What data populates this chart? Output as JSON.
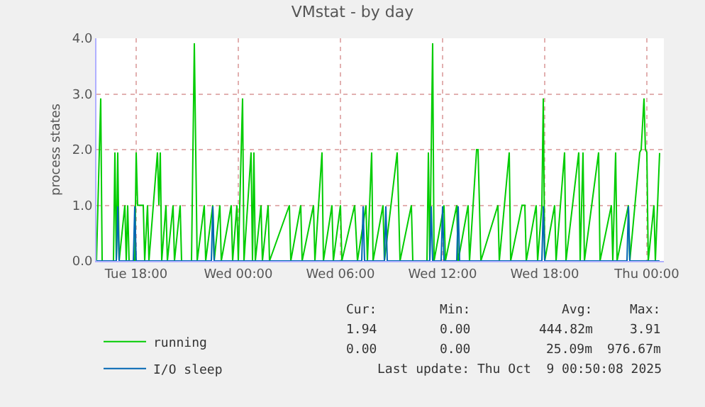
{
  "chart_data": {
    "type": "line",
    "title": "VMstat - by day",
    "ylabel": "process states",
    "xlim": [
      "2025-10-07T15:40",
      "2025-10-09T01:00"
    ],
    "xticks": [
      {
        "value": "2025-10-07T18:00",
        "label": "Tue 18:00"
      },
      {
        "value": "2025-10-08T00:00",
        "label": "Wed 00:00"
      },
      {
        "value": "2025-10-08T06:00",
        "label": "Wed 06:00"
      },
      {
        "value": "2025-10-08T12:00",
        "label": "Wed 12:00"
      },
      {
        "value": "2025-10-08T18:00",
        "label": "Wed 18:00"
      },
      {
        "value": "2025-10-09T00:00",
        "label": "Thu 00:00"
      }
    ],
    "ylim": [
      0,
      4
    ],
    "yticks": [
      {
        "value": 0,
        "label": "0.0"
      },
      {
        "value": 1,
        "label": "1.0"
      },
      {
        "value": 2,
        "label": "2.0"
      },
      {
        "value": 3,
        "label": "3.0"
      },
      {
        "value": 4,
        "label": "4.0"
      }
    ],
    "grid": true,
    "legend": "bottom",
    "marker": "none",
    "line_style": "solid",
    "series": [
      {
        "name": "running",
        "color": "#00cc00",
        "x": [
          "2025-10-07T15:40",
          "2025-10-07T15:55",
          "2025-10-07T16:00",
          "2025-10-07T16:40",
          "2025-10-07T16:45",
          "2025-10-07T16:50",
          "2025-10-07T16:55",
          "2025-10-07T17:00",
          "2025-10-07T17:20",
          "2025-10-07T17:25",
          "2025-10-07T17:30",
          "2025-10-07T17:35",
          "2025-10-07T17:55",
          "2025-10-07T18:00",
          "2025-10-07T18:05",
          "2025-10-07T18:25",
          "2025-10-07T18:30",
          "2025-10-07T18:40",
          "2025-10-07T18:45",
          "2025-10-07T19:15",
          "2025-10-07T19:20",
          "2025-10-07T19:25",
          "2025-10-07T19:30",
          "2025-10-07T19:45",
          "2025-10-07T19:50",
          "2025-10-07T20:10",
          "2025-10-07T20:15",
          "2025-10-07T20:35",
          "2025-10-07T20:40",
          "2025-10-07T21:15",
          "2025-10-07T21:25",
          "2025-10-07T21:35",
          "2025-10-07T22:00",
          "2025-10-07T22:05",
          "2025-10-07T22:30",
          "2025-10-07T22:35",
          "2025-10-07T22:55",
          "2025-10-07T23:00",
          "2025-10-07T23:35",
          "2025-10-07T23:40",
          "2025-10-07T23:55",
          "2025-10-08T00:00",
          "2025-10-08T00:15",
          "2025-10-08T00:20",
          "2025-10-08T00:45",
          "2025-10-08T00:50",
          "2025-10-08T00:55",
          "2025-10-08T01:00",
          "2025-10-08T01:20",
          "2025-10-08T01:25",
          "2025-10-08T01:45",
          "2025-10-08T01:50",
          "2025-10-08T03:00",
          "2025-10-08T03:05",
          "2025-10-08T03:40",
          "2025-10-08T03:45",
          "2025-10-08T04:25",
          "2025-10-08T04:30",
          "2025-10-08T04:55",
          "2025-10-08T05:00",
          "2025-10-08T05:30",
          "2025-10-08T05:35",
          "2025-10-08T06:00",
          "2025-10-08T06:05",
          "2025-10-08T06:50",
          "2025-10-08T07:00",
          "2025-10-08T07:30",
          "2025-10-08T07:35",
          "2025-10-08T07:50",
          "2025-10-08T07:55",
          "2025-10-08T08:30",
          "2025-10-08T08:35",
          "2025-10-08T09:20",
          "2025-10-08T09:25",
          "2025-10-08T09:30",
          "2025-10-08T10:10",
          "2025-10-08T10:15",
          "2025-10-08T11:05",
          "2025-10-08T11:10",
          "2025-10-08T11:15",
          "2025-10-08T11:25",
          "2025-10-08T11:30",
          "2025-10-08T12:05",
          "2025-10-08T12:10",
          "2025-10-08T12:50",
          "2025-10-08T12:55",
          "2025-10-08T13:30",
          "2025-10-08T13:35",
          "2025-10-08T14:00",
          "2025-10-08T14:05",
          "2025-10-08T14:10",
          "2025-10-08T14:15",
          "2025-10-08T15:15",
          "2025-10-08T15:20",
          "2025-10-08T15:55",
          "2025-10-08T16:00",
          "2025-10-08T16:40",
          "2025-10-08T16:50",
          "2025-10-08T16:55",
          "2025-10-08T17:30",
          "2025-10-08T17:35",
          "2025-10-08T17:50",
          "2025-10-08T17:55",
          "2025-10-08T18:00",
          "2025-10-08T18:35",
          "2025-10-08T18:40",
          "2025-10-08T19:10",
          "2025-10-08T19:15",
          "2025-10-08T20:00",
          "2025-10-08T20:05",
          "2025-10-08T20:15",
          "2025-10-08T20:20",
          "2025-10-08T21:10",
          "2025-10-08T21:15",
          "2025-10-08T21:55",
          "2025-10-08T22:00",
          "2025-10-08T22:10",
          "2025-10-08T22:15",
          "2025-10-08T22:55",
          "2025-10-08T23:00",
          "2025-10-08T23:35",
          "2025-10-08T23:40",
          "2025-10-08T23:50",
          "2025-10-08T23:55",
          "2025-10-09T00:00",
          "2025-10-09T00:05",
          "2025-10-09T00:25",
          "2025-10-09T00:30",
          "2025-10-09T00:45"
        ],
        "values": [
          0,
          2.92,
          0,
          0,
          1.95,
          0,
          1.95,
          0,
          1,
          0,
          1,
          0,
          0,
          1.95,
          1,
          1,
          0,
          1,
          0,
          1.95,
          1,
          1.95,
          0,
          1,
          0,
          1,
          0,
          1,
          0,
          0,
          3.91,
          0,
          1,
          0,
          1,
          0,
          1,
          0,
          1,
          0,
          1,
          0,
          2.92,
          0,
          1.95,
          0,
          1.95,
          0,
          1,
          0,
          1,
          0,
          1,
          0,
          1,
          0,
          1,
          0,
          1.95,
          0,
          1,
          0,
          1,
          0,
          1,
          0,
          1,
          0,
          1.95,
          0,
          1,
          0,
          1.95,
          1,
          0,
          1,
          0,
          0,
          1.95,
          0,
          3.91,
          0,
          1,
          0,
          1,
          0,
          1,
          0,
          2.0,
          2.0,
          1,
          0,
          1,
          0,
          1.95,
          0,
          1,
          1,
          0,
          1,
          0,
          1,
          2.92,
          0,
          1,
          0,
          1.95,
          0,
          1.95,
          0,
          1.95,
          0,
          1.95,
          0,
          1,
          0,
          1.95,
          0,
          1,
          0,
          1.95,
          2.0,
          2.92,
          2.0,
          1.95,
          0,
          1,
          0,
          1.94
        ]
      },
      {
        "name": "I/O sleep",
        "color": "#0066b3",
        "x": [
          "2025-10-07T15:40",
          "2025-10-07T16:50",
          "2025-10-07T16:55",
          "2025-10-07T17:00",
          "2025-10-07T17:50",
          "2025-10-07T17:55",
          "2025-10-07T18:00",
          "2025-10-07T22:25",
          "2025-10-07T22:30",
          "2025-10-07T22:35",
          "2025-10-08T07:15",
          "2025-10-08T07:20",
          "2025-10-08T07:25",
          "2025-10-08T08:35",
          "2025-10-08T08:40",
          "2025-10-08T08:45",
          "2025-10-08T11:15",
          "2025-10-08T11:20",
          "2025-10-08T11:25",
          "2025-10-08T11:55",
          "2025-10-08T12:00",
          "2025-10-08T12:05",
          "2025-10-08T12:50",
          "2025-10-08T12:55",
          "2025-10-08T13:00",
          "2025-10-08T17:50",
          "2025-10-08T17:55",
          "2025-10-08T18:00",
          "2025-10-08T22:50",
          "2025-10-08T22:55",
          "2025-10-08T23:00",
          "2025-10-09T00:45"
        ],
        "values": [
          0,
          0,
          0.98,
          0,
          0,
          0.98,
          0,
          0,
          0.98,
          0,
          0,
          0.98,
          0,
          0,
          0.98,
          0,
          0,
          0.98,
          0,
          0,
          0.98,
          0,
          0,
          0.98,
          0,
          0,
          0.98,
          0,
          0,
          0.98,
          0,
          0
        ]
      }
    ],
    "annotations": [
      "Cur:",
      "Min:",
      "Avg:",
      "Max:",
      "1.94",
      "0.00",
      "444.82m",
      "3.91",
      "0.00",
      "0.00",
      "25.09m",
      "976.67m",
      "Last update: Thu Oct  9 00:50:08 2025"
    ]
  }
}
